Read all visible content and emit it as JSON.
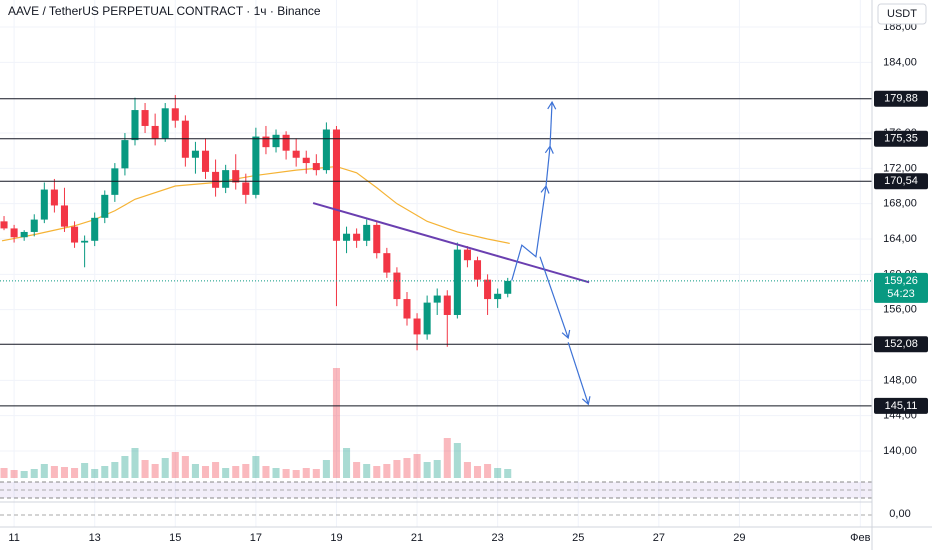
{
  "chart_data": {
    "type": "candlestick",
    "title": "AAVE / TetherUS PERPETUAL CONTRACT · 1ч · Binance",
    "currency": "USDT",
    "up_color": "#089981",
    "down_color": "#f23645",
    "grid": true,
    "xlim": [
      10.65,
      32.29
    ],
    "ylim": [
      137.85,
      191.06
    ],
    "xticks": [
      11,
      13,
      15,
      17,
      19,
      21,
      23,
      25,
      27,
      29,
      {
        "value": 32,
        "label": "Фев"
      }
    ],
    "yticks": [
      {
        "value": 188,
        "label": "188,00"
      },
      {
        "value": 184,
        "label": "184,00"
      },
      {
        "value": 176,
        "label": "176,00"
      },
      {
        "value": 172,
        "label": "172,00"
      },
      {
        "value": 168,
        "label": "168,00"
      },
      {
        "value": 164,
        "label": "164,00"
      },
      {
        "value": 160,
        "label": "160,00"
      },
      {
        "value": 156,
        "label": "156,00"
      },
      {
        "value": 148,
        "label": "148,00"
      },
      {
        "value": 144,
        "label": "144,00"
      },
      {
        "value": 140,
        "label": "140,00"
      }
    ],
    "x": [
      10.75,
      11,
      11.25,
      11.5,
      11.75,
      12,
      12.25,
      12.5,
      12.75,
      13,
      13.25,
      13.5,
      13.75,
      14,
      14.25,
      14.5,
      14.75,
      15,
      15.25,
      15.5,
      15.75,
      16,
      16.25,
      16.5,
      16.75,
      17,
      17.25,
      17.5,
      17.75,
      18,
      18.25,
      18.5,
      18.75,
      19,
      19.25,
      19.5,
      19.75,
      20,
      20.25,
      20.5,
      20.75,
      21,
      21.25,
      21.5,
      21.75,
      22,
      22.25,
      22.5,
      22.75,
      23,
      23.25
    ],
    "ohlc": [
      [
        166,
        166.6,
        165,
        165.2
      ],
      [
        165.2,
        165.6,
        163.6,
        164.2
      ],
      [
        164.2,
        165,
        163.8,
        164.8
      ],
      [
        164.8,
        166.8,
        164.3,
        166.2
      ],
      [
        166.2,
        170.4,
        165.8,
        169.6
      ],
      [
        169.6,
        170.8,
        167,
        167.8
      ],
      [
        167.8,
        169.8,
        164.8,
        165.4
      ],
      [
        165.4,
        166,
        163,
        163.6
      ],
      [
        163.6,
        164.4,
        160.8,
        163.8
      ],
      [
        163.8,
        167,
        163.2,
        166.4
      ],
      [
        166.4,
        169.5,
        165.8,
        169
      ],
      [
        169,
        172.6,
        168.2,
        172
      ],
      [
        172,
        176,
        171.2,
        175.2
      ],
      [
        175.2,
        180,
        174.6,
        178.6
      ],
      [
        178.6,
        179.4,
        176,
        176.8
      ],
      [
        176.8,
        178.2,
        174.6,
        175.4
      ],
      [
        175.4,
        179.4,
        175,
        178.8
      ],
      [
        178.8,
        180.3,
        176.6,
        177.4
      ],
      [
        177.4,
        178,
        172.2,
        173.2
      ],
      [
        173.2,
        175,
        171.4,
        174
      ],
      [
        174,
        175.4,
        170.8,
        171.6
      ],
      [
        171.6,
        173,
        168.8,
        169.8
      ],
      [
        169.8,
        172.4,
        169.2,
        171.8
      ],
      [
        171.8,
        173.6,
        169.6,
        170.4
      ],
      [
        170.4,
        171.4,
        168,
        169
      ],
      [
        169,
        176.6,
        168.6,
        175.6
      ],
      [
        175.6,
        176.8,
        173.6,
        174.4
      ],
      [
        174.4,
        176.4,
        173.8,
        175.8
      ],
      [
        175.8,
        176.2,
        173,
        174
      ],
      [
        174,
        175.4,
        172.2,
        173.2
      ],
      [
        173.2,
        174,
        171.4,
        172.6
      ],
      [
        172.6,
        173.6,
        171.2,
        171.8
      ],
      [
        171.8,
        177.2,
        171.4,
        176.4
      ],
      [
        176.4,
        176.8,
        156.4,
        163.8
      ],
      [
        163.8,
        165.4,
        162.4,
        164.6
      ],
      [
        164.6,
        165.2,
        163,
        163.8
      ],
      [
        163.8,
        166.2,
        163.2,
        165.6
      ],
      [
        165.6,
        166,
        161.8,
        162.4
      ],
      [
        162.4,
        163,
        159.6,
        160.2
      ],
      [
        160.2,
        160.8,
        156.4,
        157.2
      ],
      [
        157.2,
        158,
        154.2,
        155
      ],
      [
        155,
        155.6,
        151.4,
        153.2
      ],
      [
        153.2,
        157.6,
        152.6,
        156.8
      ],
      [
        156.8,
        158.4,
        155.4,
        157.6
      ],
      [
        157.6,
        158.2,
        151.8,
        155.4
      ],
      [
        155.4,
        163.6,
        155,
        162.8
      ],
      [
        162.8,
        163.2,
        160.8,
        161.6
      ],
      [
        161.6,
        162,
        158.6,
        159.4
      ],
      [
        159.4,
        160,
        155.4,
        157.2
      ],
      [
        157.2,
        158.4,
        156.2,
        157.8
      ],
      [
        157.8,
        159.6,
        157.4,
        159.26
      ]
    ],
    "volume": {
      "lim": [
        0,
        120
      ],
      "values": [
        10,
        8,
        7,
        9,
        14,
        12,
        11,
        10,
        15,
        9,
        12,
        16,
        22,
        30,
        18,
        14,
        20,
        26,
        22,
        14,
        12,
        16,
        10,
        12,
        14,
        22,
        12,
        10,
        9,
        8,
        10,
        9,
        18,
        110,
        30,
        16,
        14,
        12,
        14,
        18,
        20,
        24,
        16,
        18,
        40,
        35,
        16,
        12,
        14,
        10,
        9
      ]
    },
    "moving_average": {
      "color": "#f5b335",
      "x": [
        10.7,
        11.5,
        12.5,
        13,
        13.5,
        14,
        15,
        16,
        17,
        18,
        19,
        19.5,
        20,
        20.5,
        21.25,
        22,
        22.75,
        23.3
      ],
      "values": [
        163.8,
        164.5,
        165.5,
        166.2,
        167.2,
        168.5,
        170,
        170.4,
        171.2,
        171.8,
        172.2,
        171.5,
        169.8,
        168,
        166,
        164.8,
        164,
        163.5
      ]
    },
    "level_color": "#131722",
    "levels": [
      {
        "value": 179.88,
        "label": "179,88"
      },
      {
        "value": 175.35,
        "label": "175,35"
      },
      {
        "value": 170.54,
        "label": "170,54"
      },
      {
        "value": 152.08,
        "label": "152,08"
      },
      {
        "value": 145.11,
        "label": "145,11"
      }
    ],
    "last_price": {
      "value": 159.26,
      "label": "159,26"
    },
    "countdown": "54:23",
    "trendline": {
      "color": "#6a3fb0",
      "points": [
        [
          18.42,
          168.07
        ],
        [
          25.27,
          159.1
        ]
      ]
    },
    "arrows": {
      "color": "#3d72d6",
      "paths": [
        [
          [
            23.35,
            159.3
          ],
          [
            23.6,
            163.3
          ],
          [
            23.95,
            162.0
          ],
          [
            24.2,
            170.0
          ]
        ],
        [
          [
            24.2,
            170.0
          ],
          [
            24.3,
            174.5
          ]
        ],
        [
          [
            24.3,
            174.5
          ],
          [
            24.35,
            179.5
          ]
        ],
        [
          [
            24.05,
            162.0
          ],
          [
            24.75,
            152.8
          ]
        ],
        [
          [
            24.75,
            152.3
          ],
          [
            25.25,
            145.3
          ]
        ]
      ]
    },
    "oscillator_label": {
      "value": 0,
      "label": "0,00"
    }
  }
}
